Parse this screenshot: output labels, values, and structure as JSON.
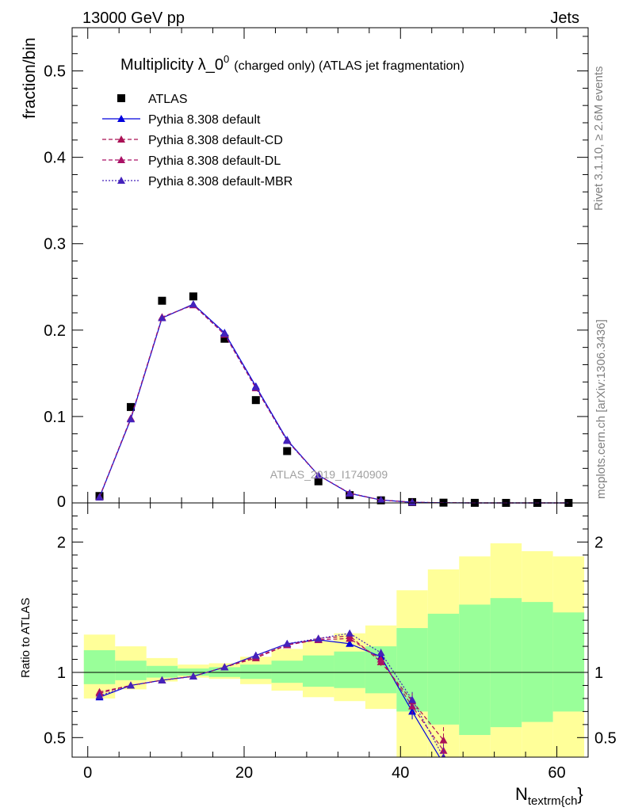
{
  "header": {
    "left": "13000 GeV pp",
    "right": "Jets"
  },
  "side_labels": {
    "rivet": "Rivet 3.1.10, ≥ 2.6M events",
    "mcplots": "mcplots.cern.ch [arXiv:1306.3436]"
  },
  "chart_data": [
    {
      "type": "scatter",
      "panel": "main",
      "title": "Multiplicity λ_0⁰ (charged only) (ATLAS jet fragmentation)",
      "title_main": "Multiplicity λ_0",
      "title_sup": "0",
      "title_rest": "(charged only) (ATLAS jet fragmentation)",
      "ylabel": "fraction/bin",
      "watermark": "ATLAS_2019_I1740909",
      "xlim": [
        -2,
        64
      ],
      "ylim": [
        0,
        0.55
      ],
      "yticks": [
        0.1,
        0.2,
        0.3,
        0.4,
        0.5
      ],
      "ytick_labels": [
        "0.1",
        "0.2",
        "0.3",
        "0.4",
        "0.5"
      ],
      "ytick_zero_label": "0",
      "grid": false,
      "legend_position": "top-left",
      "x": [
        1.5,
        5.5,
        9.5,
        13.5,
        17.5,
        21.5,
        25.5,
        29.5,
        33.5,
        37.5,
        41.5,
        45.5,
        49.5,
        53.5,
        57.5,
        61.5
      ],
      "series": [
        {
          "name": "ATLAS",
          "style": "data",
          "color": "#000000",
          "values": [
            0.008,
            0.111,
            0.234,
            0.239,
            0.19,
            0.119,
            0.06,
            0.025,
            0.009,
            0.003,
            0.001,
            0.0003,
            0.0001,
            5e-05,
            2e-05,
            1e-05
          ]
        },
        {
          "name": "Pythia 8.308 default",
          "style": "solid",
          "color": "#0000dd",
          "values": [
            0.0065,
            0.097,
            0.214,
            0.23,
            0.197,
            0.135,
            0.073,
            0.032,
            0.011,
            0.0034,
            0.0007,
            0.0001,
            0,
            0,
            0,
            0
          ]
        },
        {
          "name": "Pythia 8.308 default-CD",
          "style": "dashed",
          "color": "#aa1155",
          "values": [
            0.0068,
            0.098,
            0.215,
            0.229,
            0.195,
            0.133,
            0.072,
            0.032,
            0.0113,
            0.0033,
            0.00075,
            0.00015,
            0,
            0,
            0,
            0
          ]
        },
        {
          "name": "Pythia 8.308 default-DL",
          "style": "dashed",
          "color": "#aa1166",
          "values": [
            0.0068,
            0.098,
            0.215,
            0.229,
            0.195,
            0.133,
            0.072,
            0.032,
            0.0112,
            0.0033,
            0.0008,
            0.00015,
            0,
            0,
            0,
            0
          ]
        },
        {
          "name": "Pythia 8.308 default-MBR",
          "style": "dotted",
          "color": "#4422bb",
          "values": [
            0.0066,
            0.097,
            0.214,
            0.23,
            0.196,
            0.134,
            0.072,
            0.032,
            0.0112,
            0.0034,
            0.00075,
            0.0001,
            0,
            0,
            0,
            0
          ]
        }
      ]
    },
    {
      "type": "line",
      "panel": "ratio",
      "ylabel": "Ratio to ATLAS",
      "xlabel_main": "N",
      "xlabel_sub": "textrm{ch",
      "xlabel_tail": "}",
      "xlim": [
        -2,
        64
      ],
      "ylim": [
        0.35,
        2.3
      ],
      "xticks": [
        0,
        20,
        40,
        60
      ],
      "xtick_labels": [
        "0",
        "20",
        "40",
        "60"
      ],
      "yticks": [
        0.5,
        1,
        2
      ],
      "ytick_labels": [
        "0.5",
        "1",
        "2"
      ],
      "reference_line": 1,
      "bands": {
        "x_edges": [
          -0.5,
          3.5,
          7.5,
          11.5,
          15.5,
          19.5,
          23.5,
          27.5,
          31.5,
          35.5,
          39.5,
          43.5,
          47.5,
          51.5,
          55.5,
          59.5,
          63.5
        ],
        "inner_color": "#99ff99",
        "outer_color": "#ffff99",
        "inner_low": [
          0.91,
          0.94,
          0.96,
          0.975,
          0.965,
          0.95,
          0.92,
          0.89,
          0.88,
          0.84,
          0.7,
          0.6,
          0.52,
          0.58,
          0.62,
          0.7,
          0.89
        ],
        "inner_high": [
          1.17,
          1.09,
          1.05,
          1.03,
          1.04,
          1.06,
          1.09,
          1.13,
          1.16,
          1.2,
          1.34,
          1.45,
          1.52,
          1.57,
          1.54,
          1.46,
          1.19
        ],
        "outer_low": [
          0.8,
          0.87,
          0.93,
          0.96,
          0.95,
          0.91,
          0.86,
          0.81,
          0.78,
          0.72,
          0.35,
          0.35,
          0.35,
          0.35,
          0.35,
          0.35,
          0.76
        ],
        "outer_high": [
          1.29,
          1.2,
          1.11,
          1.06,
          1.07,
          1.12,
          1.18,
          1.24,
          1.3,
          1.36,
          1.63,
          1.79,
          1.89,
          1.99,
          1.93,
          1.89,
          1.36
        ]
      },
      "x": [
        1.5,
        5.5,
        9.5,
        13.5,
        17.5,
        21.5,
        25.5,
        29.5,
        33.5,
        37.5,
        41.5,
        45.5
      ],
      "series": [
        {
          "name": "Pythia 8.308 default",
          "style": "solid",
          "color": "#0000dd",
          "values": [
            0.81,
            0.9,
            0.94,
            0.97,
            1.04,
            1.13,
            1.22,
            1.25,
            1.22,
            1.12,
            0.7,
            0.3
          ],
          "errors": [
            0.02,
            0.01,
            0.01,
            0.01,
            0.01,
            0.01,
            0.01,
            0.02,
            0.02,
            0.03,
            0.06,
            0.1
          ]
        },
        {
          "name": "Pythia 8.308 default-CD",
          "style": "dashed",
          "color": "#aa1155",
          "values": [
            0.85,
            0.9,
            0.94,
            0.97,
            1.04,
            1.11,
            1.21,
            1.26,
            1.28,
            1.08,
            0.78,
            0.48
          ],
          "errors": [
            0.02,
            0.01,
            0.01,
            0.01,
            0.01,
            0.01,
            0.01,
            0.02,
            0.02,
            0.03,
            0.06,
            0.1
          ]
        },
        {
          "name": "Pythia 8.308 default-DL",
          "style": "dashed",
          "color": "#aa1166",
          "values": [
            0.84,
            0.9,
            0.94,
            0.97,
            1.04,
            1.12,
            1.21,
            1.25,
            1.26,
            1.1,
            0.74,
            0.4
          ],
          "errors": [
            0.02,
            0.01,
            0.01,
            0.01,
            0.01,
            0.01,
            0.01,
            0.02,
            0.02,
            0.03,
            0.06,
            0.1
          ]
        },
        {
          "name": "Pythia 8.308 default-MBR",
          "style": "dotted",
          "color": "#4422bb",
          "values": [
            0.82,
            0.9,
            0.94,
            0.97,
            1.04,
            1.13,
            1.22,
            1.26,
            1.3,
            1.15,
            0.79,
            0.35
          ],
          "errors": [
            0.02,
            0.01,
            0.01,
            0.01,
            0.01,
            0.01,
            0.01,
            0.02,
            0.02,
            0.03,
            0.06,
            0.1
          ]
        }
      ]
    }
  ]
}
